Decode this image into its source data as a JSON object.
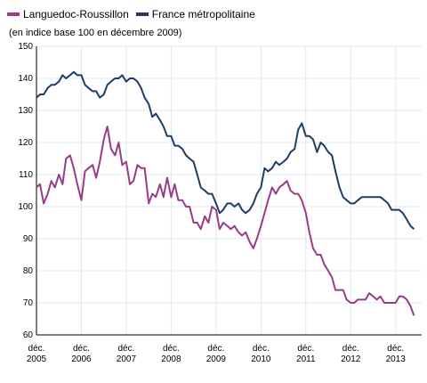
{
  "subtitle": "(en indice base 100 en décembre 2009)",
  "legend": [
    {
      "label": "Languedoc-Roussillon",
      "color": "#993c87"
    },
    {
      "label": "France métropolitaine",
      "color": "#1f3d63"
    }
  ],
  "chart_data": {
    "type": "line",
    "title": "",
    "xlabel": "",
    "ylabel": "",
    "ylim": [
      60,
      150
    ],
    "yticks": [
      60,
      70,
      80,
      90,
      100,
      110,
      120,
      130,
      140,
      150
    ],
    "grid": true,
    "legend_position": "top-left",
    "x_tick_labels": [
      {
        "top": "déc.",
        "bottom": "2005"
      },
      {
        "top": "déc.",
        "bottom": "2006"
      },
      {
        "top": "déc.",
        "bottom": "2007"
      },
      {
        "top": "déc.",
        "bottom": "2008"
      },
      {
        "top": "déc.",
        "bottom": "2009"
      },
      {
        "top": "déc.",
        "bottom": "2010"
      },
      {
        "top": "déc.",
        "bottom": "2011"
      },
      {
        "top": "déc.",
        "bottom": "2012"
      },
      {
        "top": "déc.",
        "bottom": "2013"
      }
    ],
    "x_range_years": [
      2005.92,
      2014.5
    ],
    "series": [
      {
        "name": "Languedoc-Roussillon",
        "color": "#993c87",
        "points": [
          [
            2005.92,
            106
          ],
          [
            2006.0,
            107
          ],
          [
            2006.08,
            101
          ],
          [
            2006.17,
            104
          ],
          [
            2006.25,
            108
          ],
          [
            2006.33,
            106
          ],
          [
            2006.42,
            110
          ],
          [
            2006.5,
            107
          ],
          [
            2006.58,
            115
          ],
          [
            2006.67,
            116
          ],
          [
            2006.75,
            112
          ],
          [
            2006.83,
            107
          ],
          [
            2006.92,
            102
          ],
          [
            2007.0,
            111
          ],
          [
            2007.08,
            112
          ],
          [
            2007.17,
            113
          ],
          [
            2007.25,
            109
          ],
          [
            2007.33,
            114
          ],
          [
            2007.42,
            121
          ],
          [
            2007.5,
            125
          ],
          [
            2007.58,
            118
          ],
          [
            2007.67,
            116
          ],
          [
            2007.75,
            120
          ],
          [
            2007.83,
            113
          ],
          [
            2007.92,
            114
          ],
          [
            2008.0,
            107
          ],
          [
            2008.08,
            108
          ],
          [
            2008.17,
            113
          ],
          [
            2008.25,
            112
          ],
          [
            2008.33,
            112
          ],
          [
            2008.42,
            101
          ],
          [
            2008.5,
            104
          ],
          [
            2008.58,
            103
          ],
          [
            2008.67,
            107
          ],
          [
            2008.75,
            103
          ],
          [
            2008.83,
            109
          ],
          [
            2008.92,
            103
          ],
          [
            2009.0,
            107
          ],
          [
            2009.08,
            102
          ],
          [
            2009.17,
            102
          ],
          [
            2009.25,
            100
          ],
          [
            2009.33,
            100
          ],
          [
            2009.42,
            95
          ],
          [
            2009.5,
            95
          ],
          [
            2009.58,
            93
          ],
          [
            2009.67,
            97
          ],
          [
            2009.75,
            95
          ],
          [
            2009.83,
            100
          ],
          [
            2009.92,
            99
          ],
          [
            2010.0,
            93
          ],
          [
            2010.08,
            95
          ],
          [
            2010.17,
            94
          ],
          [
            2010.25,
            93
          ],
          [
            2010.33,
            94
          ],
          [
            2010.42,
            92
          ],
          [
            2010.5,
            91
          ],
          [
            2010.58,
            92
          ],
          [
            2010.67,
            89
          ],
          [
            2010.75,
            87
          ],
          [
            2010.83,
            90
          ],
          [
            2010.92,
            94
          ],
          [
            2011.0,
            98
          ],
          [
            2011.08,
            102
          ],
          [
            2011.17,
            106
          ],
          [
            2011.25,
            104
          ],
          [
            2011.33,
            106
          ],
          [
            2011.42,
            107
          ],
          [
            2011.5,
            108
          ],
          [
            2011.58,
            105
          ],
          [
            2011.67,
            104
          ],
          [
            2011.75,
            104
          ],
          [
            2011.83,
            102
          ],
          [
            2011.92,
            98
          ],
          [
            2012.0,
            92
          ],
          [
            2012.08,
            87
          ],
          [
            2012.17,
            85
          ],
          [
            2012.25,
            85
          ],
          [
            2012.33,
            82
          ],
          [
            2012.42,
            80
          ],
          [
            2012.5,
            78
          ],
          [
            2012.58,
            74
          ],
          [
            2012.67,
            74
          ],
          [
            2012.75,
            74
          ],
          [
            2012.83,
            71
          ],
          [
            2012.92,
            70
          ],
          [
            2013.0,
            70
          ],
          [
            2013.08,
            71
          ],
          [
            2013.17,
            71
          ],
          [
            2013.25,
            71
          ],
          [
            2013.33,
            73
          ],
          [
            2013.42,
            72
          ],
          [
            2013.5,
            71
          ],
          [
            2013.58,
            72
          ],
          [
            2013.67,
            70
          ],
          [
            2013.75,
            70
          ],
          [
            2013.83,
            70
          ],
          [
            2013.92,
            70
          ],
          [
            2014.0,
            72
          ],
          [
            2014.08,
            72
          ],
          [
            2014.17,
            71
          ],
          [
            2014.25,
            69
          ],
          [
            2014.33,
            66
          ]
        ]
      },
      {
        "name": "France métropolitaine",
        "color": "#1f3d63",
        "points": [
          [
            2005.92,
            134
          ],
          [
            2006.0,
            135
          ],
          [
            2006.08,
            135
          ],
          [
            2006.17,
            137
          ],
          [
            2006.25,
            138
          ],
          [
            2006.33,
            138
          ],
          [
            2006.42,
            139
          ],
          [
            2006.5,
            141
          ],
          [
            2006.58,
            140
          ],
          [
            2006.67,
            141
          ],
          [
            2006.75,
            142
          ],
          [
            2006.83,
            141
          ],
          [
            2006.92,
            141
          ],
          [
            2007.0,
            138
          ],
          [
            2007.08,
            137
          ],
          [
            2007.17,
            136
          ],
          [
            2007.25,
            136
          ],
          [
            2007.33,
            134
          ],
          [
            2007.42,
            135
          ],
          [
            2007.5,
            138
          ],
          [
            2007.58,
            139
          ],
          [
            2007.67,
            140
          ],
          [
            2007.75,
            140
          ],
          [
            2007.83,
            141
          ],
          [
            2007.92,
            139
          ],
          [
            2008.0,
            140
          ],
          [
            2008.08,
            140
          ],
          [
            2008.17,
            139
          ],
          [
            2008.25,
            137
          ],
          [
            2008.33,
            134
          ],
          [
            2008.42,
            132
          ],
          [
            2008.5,
            128
          ],
          [
            2008.58,
            129
          ],
          [
            2008.67,
            127
          ],
          [
            2008.75,
            125
          ],
          [
            2008.83,
            122
          ],
          [
            2008.92,
            122
          ],
          [
            2009.0,
            119
          ],
          [
            2009.08,
            119
          ],
          [
            2009.17,
            118
          ],
          [
            2009.25,
            116
          ],
          [
            2009.33,
            115
          ],
          [
            2009.42,
            114
          ],
          [
            2009.5,
            110
          ],
          [
            2009.58,
            106
          ],
          [
            2009.67,
            105
          ],
          [
            2009.75,
            104
          ],
          [
            2009.83,
            104
          ],
          [
            2009.92,
            101
          ],
          [
            2010.0,
            98
          ],
          [
            2010.08,
            99
          ],
          [
            2010.17,
            101
          ],
          [
            2010.25,
            101
          ],
          [
            2010.33,
            100
          ],
          [
            2010.42,
            101
          ],
          [
            2010.5,
            99
          ],
          [
            2010.58,
            98
          ],
          [
            2010.67,
            99
          ],
          [
            2010.75,
            101
          ],
          [
            2010.83,
            104
          ],
          [
            2010.92,
            106
          ],
          [
            2011.0,
            112
          ],
          [
            2011.08,
            111
          ],
          [
            2011.17,
            112
          ],
          [
            2011.25,
            114
          ],
          [
            2011.33,
            113
          ],
          [
            2011.42,
            114
          ],
          [
            2011.5,
            115
          ],
          [
            2011.58,
            117
          ],
          [
            2011.67,
            118
          ],
          [
            2011.75,
            124
          ],
          [
            2011.83,
            126
          ],
          [
            2011.92,
            122
          ],
          [
            2012.0,
            122
          ],
          [
            2012.08,
            121
          ],
          [
            2012.17,
            117
          ],
          [
            2012.25,
            120
          ],
          [
            2012.33,
            119
          ],
          [
            2012.42,
            117
          ],
          [
            2012.5,
            116
          ],
          [
            2012.58,
            111
          ],
          [
            2012.67,
            106
          ],
          [
            2012.75,
            103
          ],
          [
            2012.83,
            102
          ],
          [
            2012.92,
            101
          ],
          [
            2013.0,
            101
          ],
          [
            2013.08,
            102
          ],
          [
            2013.17,
            103
          ],
          [
            2013.25,
            103
          ],
          [
            2013.33,
            103
          ],
          [
            2013.42,
            103
          ],
          [
            2013.5,
            103
          ],
          [
            2013.58,
            103
          ],
          [
            2013.67,
            102
          ],
          [
            2013.75,
            101
          ],
          [
            2013.83,
            99
          ],
          [
            2013.92,
            99
          ],
          [
            2014.0,
            99
          ],
          [
            2014.08,
            98
          ],
          [
            2014.17,
            96
          ],
          [
            2014.25,
            94
          ],
          [
            2014.33,
            93
          ]
        ]
      }
    ]
  }
}
